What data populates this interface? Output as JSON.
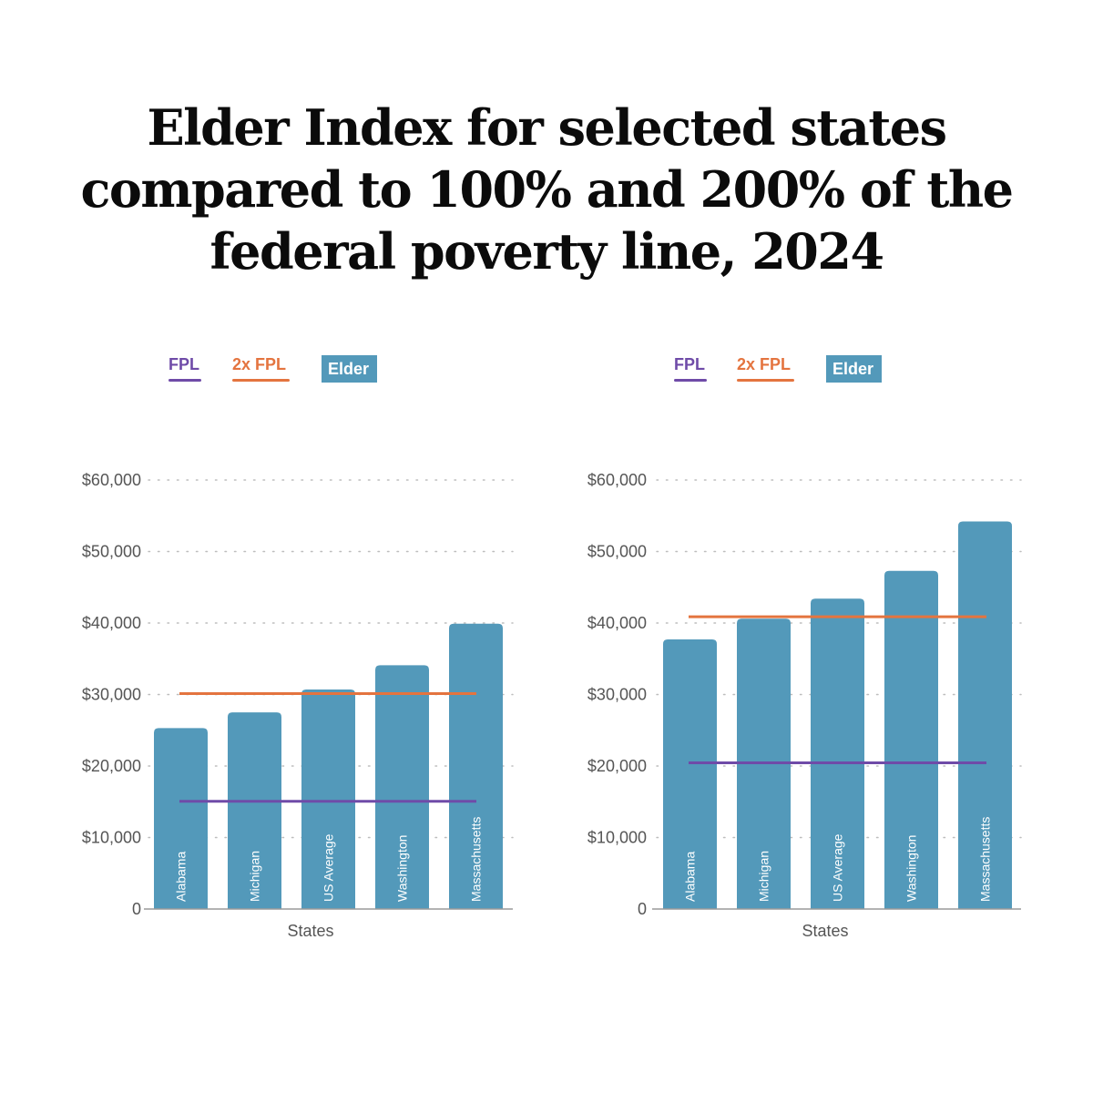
{
  "title_lines": [
    "Elder Index for selected states",
    "compared to 100% and 200% of the",
    "federal poverty line, 2024"
  ],
  "legend": {
    "fpl": "FPL",
    "fpl2": "2x FPL",
    "elder": "Elder Index"
  },
  "colors": {
    "fpl": "#6f4ba8",
    "fpl2": "#e4743f",
    "elder": "#5399ba",
    "grid": "#bdbdbd",
    "axis": "#9a9a9a"
  },
  "chart_data": [
    {
      "type": "bar",
      "title": "",
      "xlabel": "States",
      "ylabel": "",
      "categories": [
        "Alabama",
        "Michigan",
        "US Average",
        "Washington",
        "Massachusetts"
      ],
      "series": [
        {
          "name": "Elder Index",
          "values": [
            25300,
            27500,
            30700,
            34100,
            39900
          ]
        }
      ],
      "reference_lines": [
        {
          "name": "FPL",
          "value": 15060
        },
        {
          "name": "2x FPL",
          "value": 30120
        }
      ],
      "ylim": [
        0,
        60000
      ],
      "yticks": [
        0,
        10000,
        20000,
        30000,
        40000,
        50000,
        60000
      ],
      "ytick_labels": [
        "0",
        "$10,000",
        "$20,000",
        "$30,000",
        "$40,000",
        "$50,000",
        "$60,000"
      ],
      "grid": true
    },
    {
      "type": "bar",
      "title": "",
      "xlabel": "States",
      "ylabel": "",
      "categories": [
        "Alabama",
        "Michigan",
        "US Average",
        "Washington",
        "Massachusetts"
      ],
      "series": [
        {
          "name": "Elder Index",
          "values": [
            37700,
            40600,
            43400,
            47300,
            54200
          ]
        }
      ],
      "reference_lines": [
        {
          "name": "FPL",
          "value": 20440
        },
        {
          "name": "2x FPL",
          "value": 40880
        }
      ],
      "ylim": [
        0,
        60000
      ],
      "yticks": [
        0,
        10000,
        20000,
        30000,
        40000,
        50000,
        60000
      ],
      "ytick_labels": [
        "0",
        "$10,000",
        "$20,000",
        "$30,000",
        "$40,000",
        "$50,000",
        "$60,000"
      ],
      "grid": true
    }
  ]
}
